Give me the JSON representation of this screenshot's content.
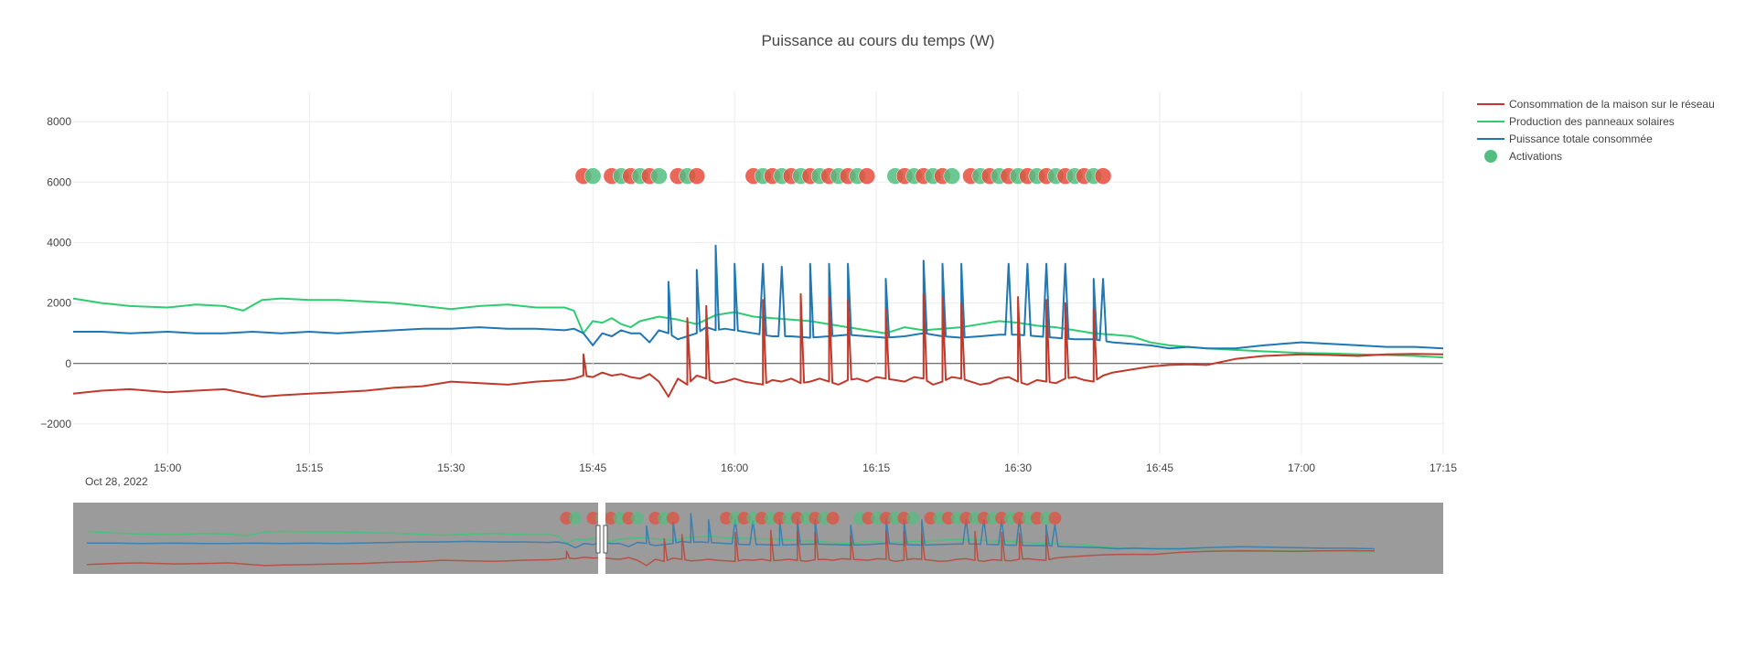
{
  "chart_data": {
    "type": "line",
    "title": "Puissance au cours du temps (W)",
    "xlabel": "",
    "ylabel": "",
    "date_label": "Oct 28, 2022",
    "ylim": [
      -3000,
      9000
    ],
    "xlim": [
      "14:50",
      "17:15"
    ],
    "y_ticks": [
      8000,
      6000,
      4000,
      2000,
      0,
      -2000
    ],
    "y_tick_labels": [
      "8000",
      "6000",
      "4000",
      "2000",
      "0",
      "−2000"
    ],
    "x_ticks": [
      "15:00",
      "15:15",
      "15:30",
      "15:45",
      "16:00",
      "16:15",
      "16:30",
      "16:45",
      "17:00",
      "17:15"
    ],
    "grid": true,
    "legend_position": "top-right",
    "colors": {
      "consommation": "#c0392b",
      "production": "#2ecc71",
      "totale": "#1f77b4",
      "activation_on": "#52be80",
      "activation_off": "#e74c3c",
      "rangeslider_bg": "#9b9b9b"
    },
    "series": [
      {
        "name": "Consommation de la maison sur le réseau",
        "color": "#c0392b",
        "x": [
          "14:50",
          "14:53",
          "14:56",
          "15:00",
          "15:03",
          "15:06",
          "15:10",
          "15:12",
          "15:15",
          "15:18",
          "15:21",
          "15:24",
          "15:27",
          "15:30",
          "15:33",
          "15:36",
          "15:39",
          "15:42",
          "15:43",
          "15:44",
          "15:45",
          "15:46",
          "15:47",
          "15:48",
          "15:49",
          "15:50",
          "15:51",
          "15:52",
          "15:53",
          "15:54",
          "15:55",
          "15:56",
          "15:57",
          "15:58",
          "15:59",
          "16:00",
          "16:01",
          "16:02",
          "16:03",
          "16:04",
          "16:05",
          "16:06",
          "16:07",
          "16:08",
          "16:09",
          "16:10",
          "16:11",
          "16:12",
          "16:13",
          "16:14",
          "16:15",
          "16:16",
          "16:17",
          "16:18",
          "16:19",
          "16:20",
          "16:21",
          "16:22",
          "16:23",
          "16:24",
          "16:25",
          "16:26",
          "16:27",
          "16:28",
          "16:29",
          "16:30",
          "16:31",
          "16:32",
          "16:33",
          "16:34",
          "16:35",
          "16:36",
          "16:37",
          "16:38",
          "16:39",
          "16:40",
          "16:42",
          "16:44",
          "16:46",
          "16:48",
          "16:50",
          "16:53",
          "16:56",
          "17:00",
          "17:03",
          "17:06",
          "17:09",
          "17:12",
          "17:15"
        ],
        "values": [
          -1000,
          -900,
          -850,
          -950,
          -900,
          -850,
          -1100,
          -1050,
          -1000,
          -950,
          -900,
          -800,
          -750,
          -600,
          -650,
          -700,
          -600,
          -550,
          -500,
          -400,
          -450,
          -300,
          -400,
          -350,
          -450,
          -500,
          -350,
          -600,
          -1100,
          -500,
          -700,
          -400,
          -500,
          -650,
          -600,
          -500,
          -600,
          -650,
          -700,
          -550,
          -600,
          -500,
          -650,
          -600,
          -500,
          -600,
          -700,
          -550,
          -500,
          -600,
          -450,
          -500,
          -550,
          -600,
          -450,
          -500,
          -700,
          -600,
          -450,
          -500,
          -600,
          -700,
          -650,
          -500,
          -450,
          -600,
          -700,
          -550,
          -600,
          -650,
          -500,
          -450,
          -550,
          -600,
          -400,
          -300,
          -200,
          -100,
          -50,
          -30,
          -50,
          150,
          250,
          300,
          280,
          250,
          300,
          320,
          300
        ],
        "spikes": [
          [
            "15:44",
            300
          ],
          [
            "15:55",
            1500
          ],
          [
            "15:57",
            1900
          ],
          [
            "16:03",
            2100
          ],
          [
            "16:07",
            2300
          ],
          [
            "16:10",
            2200
          ],
          [
            "16:12",
            2100
          ],
          [
            "16:16",
            1800
          ],
          [
            "16:20",
            2300
          ],
          [
            "16:22",
            2200
          ],
          [
            "16:24",
            2000
          ],
          [
            "16:30",
            2200
          ],
          [
            "16:33",
            2100
          ],
          [
            "16:35",
            2000
          ],
          [
            "16:38",
            1800
          ]
        ]
      },
      {
        "name": "Production des panneaux solaires",
        "color": "#2ecc71",
        "x": [
          "14:50",
          "14:53",
          "14:56",
          "15:00",
          "15:03",
          "15:06",
          "15:08",
          "15:10",
          "15:12",
          "15:15",
          "15:18",
          "15:21",
          "15:24",
          "15:27",
          "15:30",
          "15:33",
          "15:36",
          "15:39",
          "15:42",
          "15:43",
          "15:44",
          "15:45",
          "15:46",
          "15:47",
          "15:48",
          "15:49",
          "15:50",
          "15:52",
          "15:54",
          "15:56",
          "15:58",
          "16:00",
          "16:02",
          "16:04",
          "16:06",
          "16:08",
          "16:10",
          "16:12",
          "16:14",
          "16:16",
          "16:18",
          "16:20",
          "16:22",
          "16:24",
          "16:26",
          "16:28",
          "16:30",
          "16:32",
          "16:34",
          "16:36",
          "16:38",
          "16:40",
          "16:42",
          "16:44",
          "16:46",
          "16:48",
          "16:50",
          "16:53",
          "16:56",
          "17:00",
          "17:03",
          "17:06",
          "17:09",
          "17:12",
          "17:15"
        ],
        "values": [
          2150,
          2000,
          1900,
          1850,
          1950,
          1900,
          1750,
          2100,
          2150,
          2100,
          2100,
          2050,
          2000,
          1900,
          1800,
          1900,
          1950,
          1850,
          1850,
          1750,
          1000,
          1400,
          1350,
          1500,
          1300,
          1200,
          1400,
          1550,
          1450,
          1300,
          1600,
          1700,
          1550,
          1500,
          1450,
          1400,
          1300,
          1200,
          1100,
          1000,
          1200,
          1100,
          1150,
          1200,
          1300,
          1400,
          1350,
          1250,
          1200,
          1100,
          1000,
          950,
          900,
          700,
          600,
          550,
          500,
          450,
          400,
          350,
          330,
          300,
          280,
          250,
          200
        ]
      },
      {
        "name": "Puissance totale consommée",
        "color": "#1f77b4",
        "x": [
          "14:50",
          "14:53",
          "14:56",
          "15:00",
          "15:03",
          "15:06",
          "15:09",
          "15:12",
          "15:15",
          "15:18",
          "15:21",
          "15:24",
          "15:27",
          "15:30",
          "15:33",
          "15:36",
          "15:39",
          "15:42",
          "15:43",
          "15:44",
          "15:45",
          "15:46",
          "15:47",
          "15:48",
          "15:49",
          "15:50",
          "15:51",
          "15:52",
          "15:53",
          "15:54",
          "15:55",
          "15:56",
          "15:57",
          "15:58",
          "15:59",
          "16:00",
          "16:02",
          "16:04",
          "16:06",
          "16:08",
          "16:10",
          "16:12",
          "16:14",
          "16:16",
          "16:18",
          "16:20",
          "16:22",
          "16:24",
          "16:26",
          "16:28",
          "16:30",
          "16:32",
          "16:34",
          "16:36",
          "16:38",
          "16:40",
          "16:42",
          "16:44",
          "16:46",
          "16:48",
          "16:50",
          "16:53",
          "16:56",
          "17:00",
          "17:03",
          "17:06",
          "17:09",
          "17:12",
          "17:15"
        ],
        "values": [
          1050,
          1050,
          1000,
          1050,
          1000,
          1000,
          1050,
          1000,
          1050,
          1000,
          1050,
          1100,
          1150,
          1150,
          1200,
          1150,
          1150,
          1100,
          1150,
          1000,
          600,
          1000,
          900,
          1100,
          1000,
          1000,
          700,
          1100,
          1000,
          800,
          900,
          1000,
          1200,
          1100,
          1150,
          1100,
          1000,
          900,
          900,
          850,
          900,
          950,
          900,
          850,
          900,
          1000,
          900,
          850,
          900,
          950,
          950,
          900,
          850,
          800,
          800,
          700,
          650,
          600,
          500,
          550,
          500,
          500,
          600,
          700,
          650,
          600,
          550,
          550,
          500
        ],
        "spikes": [
          [
            "15:53",
            2700
          ],
          [
            "15:56",
            3100
          ],
          [
            "15:58",
            3900
          ],
          [
            "16:00",
            3300
          ],
          [
            "16:03",
            3300
          ],
          [
            "16:05",
            3200
          ],
          [
            "16:08",
            3300
          ],
          [
            "16:10",
            3300
          ],
          [
            "16:12",
            3300
          ],
          [
            "16:16",
            2800
          ],
          [
            "16:20",
            3400
          ],
          [
            "16:22",
            3300
          ],
          [
            "16:24",
            3300
          ],
          [
            "16:29",
            3300
          ],
          [
            "16:31",
            3300
          ],
          [
            "16:33",
            3300
          ],
          [
            "16:35",
            3300
          ],
          [
            "16:38",
            2800
          ],
          [
            "16:39",
            2800
          ]
        ]
      }
    ],
    "activations": {
      "name": "Activations",
      "y": 6200,
      "on_times": [
        "15:45",
        "15:48",
        "15:50",
        "15:52",
        "15:55",
        "16:03",
        "16:05",
        "16:07",
        "16:09",
        "16:11",
        "16:13",
        "16:17",
        "16:19",
        "16:21",
        "16:23",
        "16:26",
        "16:28",
        "16:30",
        "16:32",
        "16:34",
        "16:36",
        "16:38"
      ],
      "off_times": [
        "15:44",
        "15:47",
        "15:49",
        "15:51",
        "15:54",
        "15:56",
        "16:02",
        "16:04",
        "16:06",
        "16:08",
        "16:10",
        "16:12",
        "16:14",
        "16:18",
        "16:20",
        "16:22",
        "16:25",
        "16:27",
        "16:29",
        "16:31",
        "16:33",
        "16:35",
        "16:37",
        "16:39"
      ]
    }
  }
}
